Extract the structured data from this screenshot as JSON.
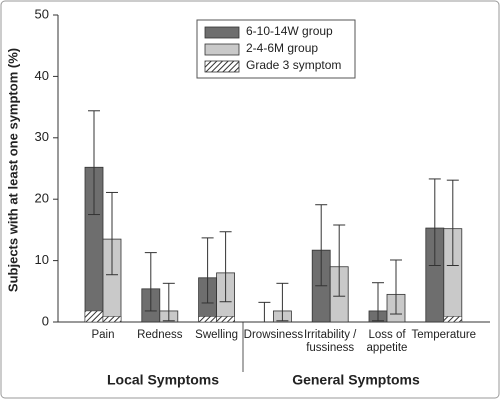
{
  "chart_data": {
    "type": "bar",
    "y_label": "Subjects with at least one symptom (%)",
    "categories": [
      "Pain",
      "Redness",
      "Swelling",
      "Drowsiness",
      "Irritability /\nfussiness",
      "Loss of\nappetite",
      "Temperature"
    ],
    "group_labels": [
      "Local Symptoms",
      "General Symptoms"
    ],
    "series": [
      {
        "name": "6-10-14W group",
        "color": "#6e6e6e",
        "values": [
          25.2,
          5.4,
          7.2,
          0,
          11.7,
          1.8,
          15.3
        ],
        "ci_low": [
          17.5,
          1.8,
          3.1,
          0,
          5.9,
          0.2,
          9.2
        ],
        "ci_high": [
          34.4,
          11.3,
          13.7,
          3.2,
          19.1,
          6.4,
          23.3
        ],
        "grade3": [
          1.8,
          0,
          0.9,
          0,
          0,
          0,
          0
        ]
      },
      {
        "name": "2-4-6M group",
        "color": "#c9c9c9",
        "values": [
          13.5,
          1.8,
          8.0,
          1.8,
          9.0,
          4.5,
          15.2
        ],
        "ci_low": [
          7.7,
          0.2,
          3.3,
          0.2,
          4.2,
          1.3,
          9.2
        ],
        "ci_high": [
          21.1,
          6.3,
          14.7,
          6.3,
          15.8,
          10.1,
          23.1
        ],
        "grade3": [
          0.9,
          0,
          0.9,
          0,
          0,
          0,
          0.9
        ]
      }
    ],
    "grade3_name": "Grade 3 symptom",
    "ylim": [
      0,
      50
    ],
    "yticks": [
      0,
      10,
      20,
      30,
      40,
      50
    ]
  }
}
